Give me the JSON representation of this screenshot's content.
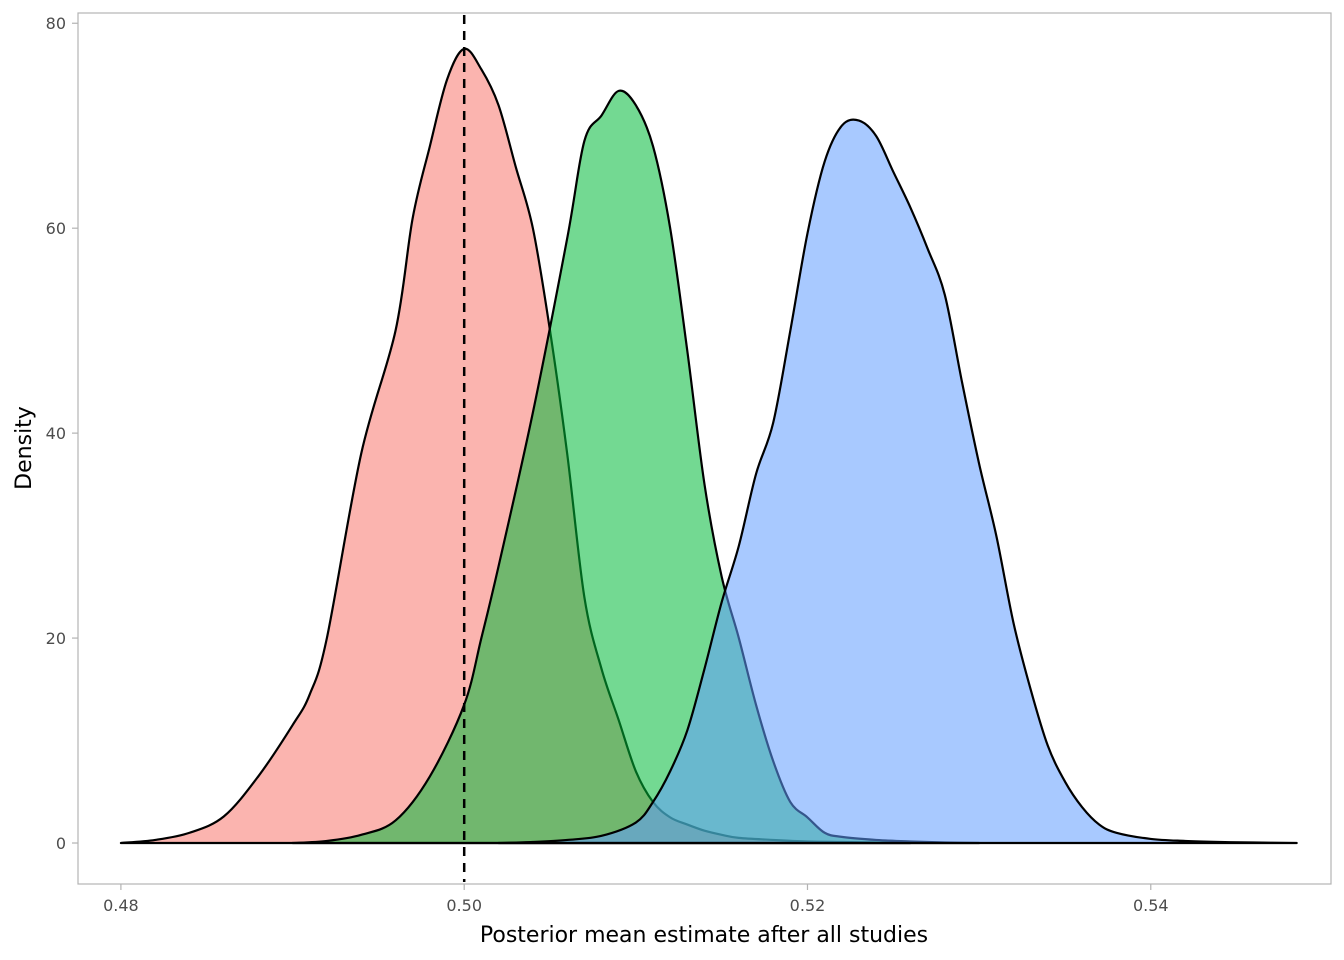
{
  "chart_data": {
    "type": "area",
    "xlabel": "Posterior mean estimate after all studies",
    "ylabel": "Density",
    "xlim": [
      0.4775,
      0.5505
    ],
    "ylim": [
      -4,
      81
    ],
    "x_ticks": [
      0.48,
      0.5,
      0.52,
      0.54
    ],
    "x_tick_labels": [
      "0.48",
      "0.50",
      "0.52",
      "0.54"
    ],
    "y_ticks": [
      0,
      20,
      40,
      60,
      80
    ],
    "y_tick_labels": [
      "0",
      "20",
      "40",
      "60",
      "80"
    ],
    "grid": false,
    "legend": "none",
    "reference_line": {
      "x": 0.5,
      "style": "dashed",
      "color": "#000000"
    },
    "series": [
      {
        "color": "#F8766D",
        "x": [
          0.48,
          0.482,
          0.484,
          0.486,
          0.488,
          0.49,
          0.491,
          0.492,
          0.494,
          0.496,
          0.497,
          0.498,
          0.499,
          0.5,
          0.501,
          0.502,
          0.503,
          0.504,
          0.505,
          0.506,
          0.507,
          0.508,
          0.509,
          0.51,
          0.511,
          0.512,
          0.513,
          0.514,
          0.515,
          0.516,
          0.518,
          0.52,
          0.522,
          0.524,
          0.526
        ],
        "values": [
          0.0,
          0.3,
          1.0,
          2.6,
          6.5,
          11.5,
          14.5,
          20.0,
          38.0,
          50.0,
          61.0,
          68.0,
          74.5,
          77.5,
          75.5,
          72.0,
          66.0,
          60.0,
          50.0,
          38.0,
          24.0,
          17.0,
          12.0,
          7.0,
          4.0,
          2.5,
          1.8,
          1.2,
          0.8,
          0.5,
          0.3,
          0.15,
          0.1,
          0.05,
          0.0
        ]
      },
      {
        "color": "#00BA38",
        "x": [
          0.49,
          0.492,
          0.494,
          0.496,
          0.498,
          0.5,
          0.501,
          0.502,
          0.504,
          0.506,
          0.507,
          0.508,
          0.509,
          0.51,
          0.511,
          0.512,
          0.513,
          0.514,
          0.515,
          0.516,
          0.517,
          0.518,
          0.519,
          0.52,
          0.521,
          0.522,
          0.524,
          0.526,
          0.528,
          0.53
        ],
        "values": [
          0.0,
          0.2,
          0.8,
          2.2,
          6.5,
          13.5,
          20.0,
          27.0,
          42.0,
          59.0,
          68.5,
          71.0,
          73.4,
          72.0,
          68.0,
          60.0,
          48.0,
          35.0,
          26.0,
          20.0,
          13.5,
          8.0,
          4.0,
          2.5,
          1.0,
          0.6,
          0.3,
          0.15,
          0.05,
          0.0
        ]
      },
      {
        "color": "#619CFF",
        "x": [
          0.502,
          0.504,
          0.506,
          0.508,
          0.51,
          0.511,
          0.512,
          0.513,
          0.514,
          0.515,
          0.516,
          0.517,
          0.518,
          0.519,
          0.52,
          0.521,
          0.522,
          0.523,
          0.524,
          0.525,
          0.526,
          0.527,
          0.528,
          0.529,
          0.53,
          0.531,
          0.532,
          0.533,
          0.534,
          0.535,
          0.536,
          0.537,
          0.538,
          0.54,
          0.542,
          0.544,
          0.546,
          0.5485
        ],
        "values": [
          0.0,
          0.1,
          0.3,
          0.7,
          2.0,
          4.0,
          7.0,
          11.0,
          17.0,
          23.5,
          29.0,
          36.0,
          41.0,
          50.0,
          59.5,
          66.5,
          70.0,
          70.5,
          69.0,
          65.5,
          62.0,
          58.0,
          53.5,
          45.0,
          37.0,
          30.0,
          21.5,
          15.0,
          9.5,
          6.0,
          3.5,
          1.8,
          1.0,
          0.4,
          0.2,
          0.1,
          0.05,
          0.0
        ]
      }
    ]
  }
}
